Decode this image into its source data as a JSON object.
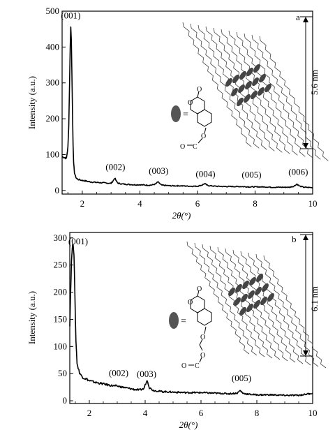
{
  "chart_data": [
    {
      "type": "line",
      "panel_label": "a",
      "xlabel": "2θ(°)",
      "ylabel": "Intensity (a.u.)",
      "xlim": [
        1.3,
        10
      ],
      "ylim": [
        -10,
        500
      ],
      "xticks": [
        2,
        4,
        6,
        8,
        10
      ],
      "yticks": [
        0,
        100,
        200,
        300,
        400,
        500
      ],
      "grid": false,
      "series": [
        {
          "x": [
            1.3,
            1.38,
            1.45,
            1.5,
            1.53,
            1.56,
            1.58,
            1.6,
            1.62,
            1.64,
            1.66,
            1.68,
            1.7,
            1.73,
            1.76,
            1.8,
            1.85,
            1.9,
            2.0,
            2.1,
            2.2,
            2.4,
            2.6,
            2.8,
            3.0,
            3.08,
            3.13,
            3.18,
            3.25,
            3.4,
            3.6,
            3.8,
            4.0,
            4.2,
            4.4,
            4.55,
            4.62,
            4.68,
            4.75,
            4.9,
            5.1,
            5.4,
            5.7,
            6.0,
            6.15,
            6.25,
            6.35,
            6.6,
            6.9,
            7.2,
            7.5,
            7.8,
            8.0,
            8.3,
            8.6,
            8.9,
            9.2,
            9.35,
            9.45,
            9.55,
            9.7,
            10.0
          ],
          "y": [
            95,
            92,
            90,
            120,
            180,
            300,
            400,
            458,
            420,
            330,
            220,
            130,
            75,
            50,
            40,
            34,
            31,
            30,
            28,
            27,
            25,
            23,
            22,
            21,
            20,
            28,
            35,
            26,
            20,
            18,
            17,
            16,
            16,
            15,
            15,
            18,
            24,
            20,
            15,
            14,
            13,
            13,
            12,
            12,
            15,
            19,
            14,
            12,
            11,
            11,
            11,
            10,
            10,
            10,
            9,
            9,
            9,
            12,
            18,
            12,
            9,
            8
          ]
        }
      ],
      "annotations": [
        {
          "text": "(001)",
          "x": 1.6,
          "y": 480
        },
        {
          "text": "(002)",
          "x": 3.15,
          "y": 57
        },
        {
          "text": "(003)",
          "x": 4.65,
          "y": 46
        },
        {
          "text": "(004)",
          "x": 6.28,
          "y": 38
        },
        {
          "text": "(005)",
          "x": 7.88,
          "y": 36
        },
        {
          "text": "(006)",
          "x": 9.5,
          "y": 44
        }
      ],
      "spacing_label": "5.6 nm",
      "molecule_equals": "=",
      "molecule_atoms": [
        "O",
        "O",
        "O",
        "O",
        "C"
      ]
    },
    {
      "type": "line",
      "panel_label": "b",
      "xlabel": "2θ(°)",
      "ylabel": "Intensity (a.u.)",
      "xlim": [
        1.3,
        10
      ],
      "ylim": [
        -5,
        310
      ],
      "xticks": [
        2,
        4,
        6,
        8,
        10
      ],
      "yticks": [
        0,
        50,
        100,
        150,
        200,
        250,
        300
      ],
      "grid": false,
      "series": [
        {
          "x": [
            1.3,
            1.33,
            1.36,
            1.39,
            1.42,
            1.45,
            1.48,
            1.52,
            1.56,
            1.6,
            1.65,
            1.7,
            1.8,
            1.9,
            2.0,
            2.2,
            2.4,
            2.6,
            2.8,
            3.0,
            3.2,
            3.4,
            3.6,
            3.8,
            3.95,
            4.02,
            4.08,
            4.15,
            4.3,
            4.6,
            5.0,
            5.5,
            6.0,
            6.5,
            7.0,
            7.3,
            7.4,
            7.5,
            7.7,
            8.0,
            8.5,
            9.0,
            9.5,
            10.0
          ],
          "y": [
            140,
            200,
            255,
            282,
            290,
            270,
            200,
            110,
            70,
            60,
            52,
            47,
            42,
            40,
            37,
            34,
            32,
            30,
            28,
            27,
            25,
            23,
            21,
            20,
            22,
            32,
            38,
            24,
            19,
            17,
            16,
            15,
            15,
            14,
            13,
            14,
            19,
            14,
            12,
            11,
            11,
            10,
            10,
            14
          ]
        }
      ],
      "annotations": [
        {
          "text": "(001)",
          "x": 1.6,
          "y": 288
        },
        {
          "text": "(002)",
          "x": 3.05,
          "y": 46
        },
        {
          "text": "(003)",
          "x": 4.05,
          "y": 44
        },
        {
          "text": "(005)",
          "x": 7.45,
          "y": 36
        }
      ],
      "spacing_label": "6.1 nm",
      "molecule_equals": "=",
      "molecule_atoms": [
        "O",
        "O",
        "O",
        "O",
        "O",
        "C"
      ]
    }
  ]
}
